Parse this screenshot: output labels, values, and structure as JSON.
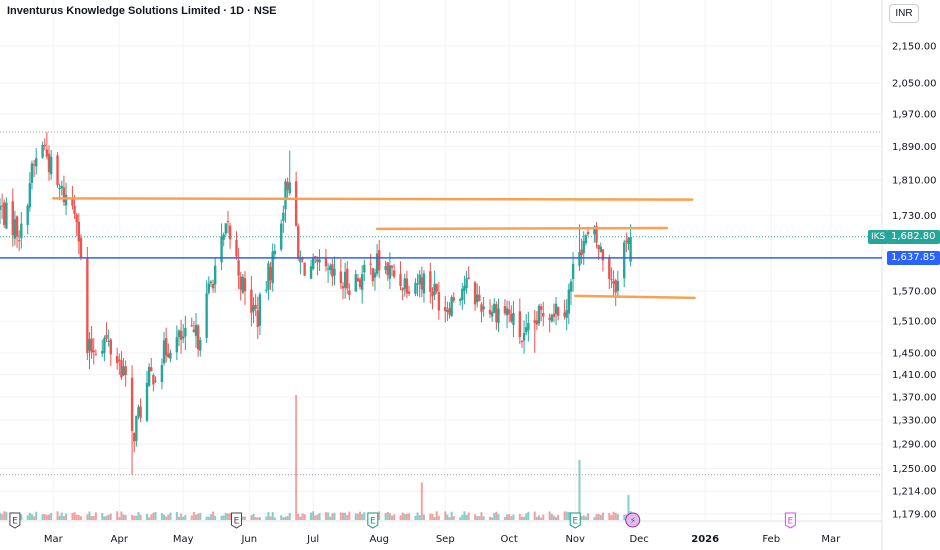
{
  "header": {
    "title": "Inventurus Knowledge Solutions Limited · 1D · NSE",
    "currency": "INR"
  },
  "colors": {
    "up": "#26a69a",
    "down": "#ef5350",
    "level_line": "#f7a252",
    "support_line": "#2962ff",
    "grid": "#f0f3fa"
  },
  "markers": {
    "symbol": "IKS",
    "last_price_label": "1,682.80",
    "support_label": "1,637.85"
  },
  "events": [
    {
      "icon": "earnings-e-icon",
      "label": "E",
      "date": "2025-02-11",
      "status": "past"
    },
    {
      "icon": "earnings-e-icon",
      "label": "E",
      "date": "2025-05-26",
      "status": "past"
    },
    {
      "icon": "earnings-e-icon",
      "label": "E",
      "date": "2025-07-29",
      "status": "positive"
    },
    {
      "icon": "earnings-e-icon",
      "label": "E",
      "date": "2025-11-01",
      "status": "positive"
    },
    {
      "icon": "lightning-icon",
      "label": "⚡",
      "date": "2025-11-28",
      "status": "dividend"
    },
    {
      "icon": "earnings-e-icon",
      "label": "E",
      "date": "2026-02-10",
      "status": "upcoming"
    }
  ],
  "chart_data": {
    "type": "candlestick",
    "title": "Inventurus Knowledge Solutions Limited · 1D · NSE",
    "x_tick_labels": [
      "Mar",
      "Apr",
      "May",
      "Jun",
      "Jul",
      "Aug",
      "Sep",
      "Oct",
      "Nov",
      "Dec",
      "2026",
      "Feb",
      "Mar"
    ],
    "y_tick_labels": [
      "2,150.00",
      "2,050.00",
      "1,970.00",
      "1,890.00",
      "1,810.00",
      "1,730.00",
      "1,682.80",
      "1,637.85",
      "1,570.00",
      "1,510.00",
      "1,450.00",
      "1,410.00",
      "1,370.00",
      "1,330.00",
      "1,290.00",
      "1,250.00",
      "1,214.00",
      "1,179.00"
    ],
    "y_scale": "log",
    "y_range": [
      1170,
      2200
    ],
    "x_range": [
      "2025-02-04",
      "2026-03-25"
    ],
    "last_price": 1682.8,
    "support_level": 1637.85,
    "dotted_levels": [
      1925,
      1240
    ],
    "horizontal_lines": [
      {
        "start": "2025-03-01",
        "end": "2025-12-26",
        "value_start": 1768,
        "value_end": 1765
      },
      {
        "start": "2025-07-31",
        "end": "2025-12-14",
        "value_start": 1700,
        "value_end": 1702
      },
      {
        "start": "2025-11-01",
        "end": "2025-12-27",
        "value_start": 1560,
        "value_end": 1556
      }
    ],
    "anchors": [
      {
        "date": "2025-02-04",
        "close": 1745
      },
      {
        "date": "2025-02-14",
        "close": 1690
      },
      {
        "date": "2025-02-18",
        "close": 1810
      },
      {
        "date": "2025-02-24",
        "close": 1900
      },
      {
        "date": "2025-03-03",
        "close": 1790
      },
      {
        "date": "2025-03-12",
        "close": 1745
      },
      {
        "date": "2025-03-17",
        "close": 1450
      },
      {
        "date": "2025-03-25",
        "close": 1475
      },
      {
        "date": "2025-04-03",
        "close": 1420
      },
      {
        "date": "2025-04-07",
        "close": 1300
      },
      {
        "date": "2025-04-15",
        "close": 1400
      },
      {
        "date": "2025-04-25",
        "close": 1470
      },
      {
        "date": "2025-05-08",
        "close": 1480
      },
      {
        "date": "2025-05-16",
        "close": 1620
      },
      {
        "date": "2025-05-22",
        "close": 1700
      },
      {
        "date": "2025-05-30",
        "close": 1560
      },
      {
        "date": "2025-06-05",
        "close": 1520
      },
      {
        "date": "2025-06-13",
        "close": 1650
      },
      {
        "date": "2025-06-17",
        "close": 1760
      },
      {
        "date": "2025-06-20",
        "close": 1830
      },
      {
        "date": "2025-06-24",
        "close": 1630
      },
      {
        "date": "2025-07-03",
        "close": 1610
      },
      {
        "date": "2025-07-15",
        "close": 1585
      },
      {
        "date": "2025-07-25",
        "close": 1600
      },
      {
        "date": "2025-07-31",
        "close": 1625
      },
      {
        "date": "2025-08-12",
        "close": 1590
      },
      {
        "date": "2025-08-22",
        "close": 1595
      },
      {
        "date": "2025-09-01",
        "close": 1540
      },
      {
        "date": "2025-09-10",
        "close": 1585
      },
      {
        "date": "2025-09-19",
        "close": 1540
      },
      {
        "date": "2025-09-30",
        "close": 1530
      },
      {
        "date": "2025-10-08",
        "close": 1470
      },
      {
        "date": "2025-10-17",
        "close": 1530
      },
      {
        "date": "2025-10-28",
        "close": 1545
      },
      {
        "date": "2025-11-03",
        "close": 1670
      },
      {
        "date": "2025-11-10",
        "close": 1680
      },
      {
        "date": "2025-11-18",
        "close": 1600
      },
      {
        "date": "2025-11-21",
        "close": 1585
      },
      {
        "date": "2025-11-25",
        "close": 1690
      },
      {
        "date": "2025-11-27",
        "close": 1682.8
      }
    ],
    "extremes": [
      {
        "date": "2025-02-26",
        "high": 1925
      },
      {
        "date": "2025-03-18",
        "low": 1420
      },
      {
        "date": "2025-04-07",
        "low": 1240
      },
      {
        "date": "2025-06-20",
        "high": 1880
      },
      {
        "date": "2025-10-13",
        "low": 1450
      },
      {
        "date": "2025-11-03",
        "high": 1710
      },
      {
        "date": "2025-11-27",
        "high": 1710
      }
    ],
    "volume": {
      "spikes": [
        {
          "date": "2025-06-23",
          "relative": 1.0
        },
        {
          "date": "2025-11-03",
          "relative": 0.48
        },
        {
          "date": "2025-08-21",
          "relative": 0.3
        },
        {
          "date": "2025-11-26",
          "relative": 0.2
        }
      ]
    },
    "grid": true
  }
}
